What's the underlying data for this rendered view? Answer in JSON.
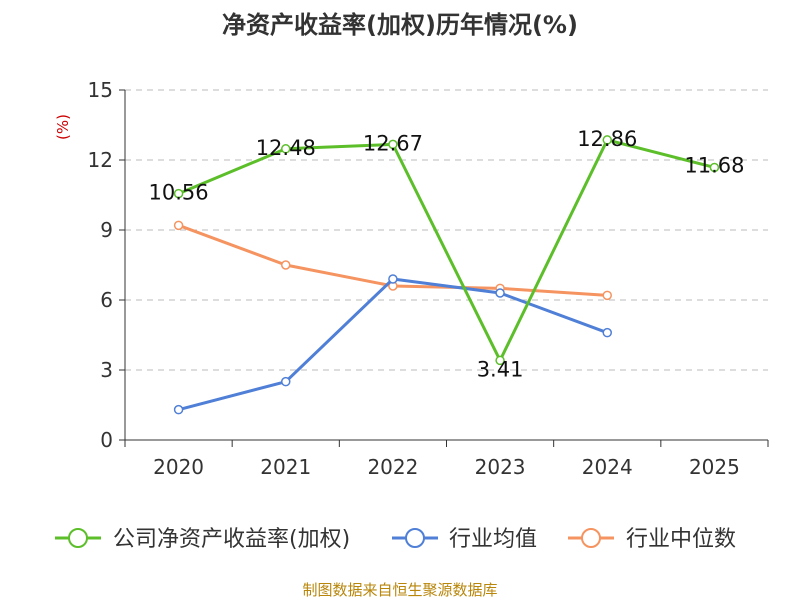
{
  "chart_data": {
    "type": "line",
    "title": "净资产收益率(加权)历年情况(%)",
    "ylabel": "(%)",
    "xlabel": "",
    "categories": [
      "2020",
      "2021",
      "2022",
      "2023",
      "2024",
      "2025"
    ],
    "ylim": [
      0,
      15
    ],
    "yticks": [
      0,
      3,
      6,
      9,
      12,
      15
    ],
    "grid": true,
    "legend_position": "bottom",
    "series": [
      {
        "name": "公司净资产收益率(加权)",
        "color": "#5cbf2a",
        "values": [
          10.56,
          12.48,
          12.67,
          3.41,
          12.86,
          11.68
        ],
        "labels": [
          "10.56",
          "12.48",
          "12.67",
          "3.41",
          "12.86",
          "11.68"
        ]
      },
      {
        "name": "行业均值",
        "color": "#4f7fd6",
        "values": [
          1.3,
          2.5,
          6.9,
          6.3,
          4.6,
          null
        ]
      },
      {
        "name": "行业中位数",
        "color": "#f59460",
        "values": [
          9.2,
          7.5,
          6.6,
          6.5,
          6.2,
          null
        ]
      }
    ]
  },
  "source": "制图数据来自恒生聚源数据库"
}
